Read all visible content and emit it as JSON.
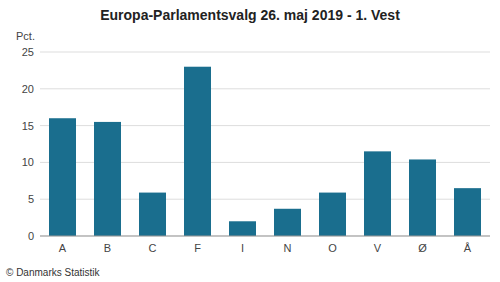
{
  "chart_data": {
    "type": "bar",
    "title": "Europa-Parlamentsvalg 26. maj 2019 - 1. Vest",
    "ylabel": "Pct.",
    "annotations": [
      "© Danmarks Statistik"
    ],
    "categories": [
      "A",
      "B",
      "C",
      "F",
      "I",
      "N",
      "O",
      "V",
      "Ø",
      "Å"
    ],
    "values": [
      16.0,
      15.5,
      5.9,
      23.0,
      2.0,
      3.7,
      5.9,
      11.5,
      10.4,
      6.5
    ],
    "color": "#1a6e8e",
    "ylim": [
      0,
      25
    ],
    "yticks": [
      0,
      5,
      10,
      15,
      20,
      25
    ],
    "grid": true
  }
}
